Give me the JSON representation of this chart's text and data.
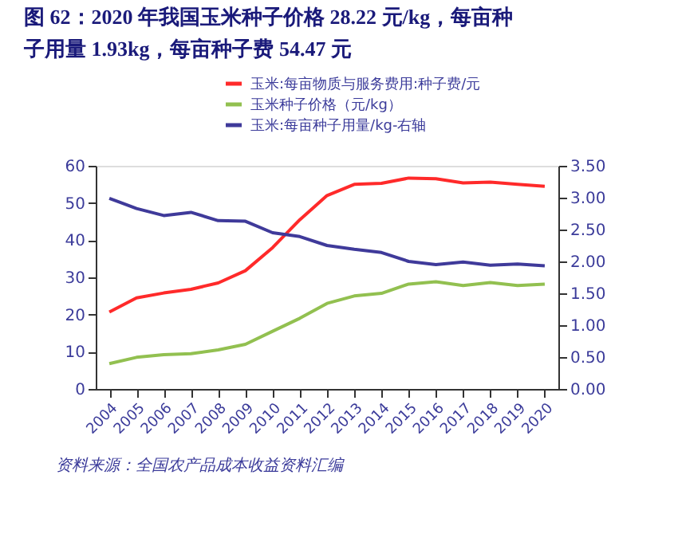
{
  "chart_data": {
    "type": "line",
    "title": "图 62：2020 年我国玉米种子价格 28.22 元/kg，每亩种子用量 1.93kg，每亩种子费 54.47 元",
    "categories": [
      "2004",
      "2005",
      "2006",
      "2007",
      "2008",
      "2009",
      "2010",
      "2011",
      "2012",
      "2013",
      "2014",
      "2015",
      "2016",
      "2017",
      "2018",
      "2019",
      "2020"
    ],
    "series": [
      {
        "name": "玉米:每亩物质与服务费用:种子费/元",
        "color": "#ff2a2a",
        "values": [
          20.7,
          24.5,
          25.8,
          26.8,
          28.5,
          31.8,
          38.0,
          45.5,
          52.0,
          55.0,
          55.3,
          56.7,
          56.5,
          55.4,
          55.6,
          55.0,
          54.5
        ]
      },
      {
        "name": "玉米种子价格（元/kg）",
        "color": "#92c050",
        "values": [
          6.8,
          8.5,
          9.2,
          9.5,
          10.5,
          12.0,
          15.5,
          19.0,
          23.0,
          25.0,
          25.7,
          28.2,
          28.8,
          27.8,
          28.6,
          27.8,
          28.2
        ]
      },
      {
        "name": "玉米:每亩种子用量/kg-右轴",
        "color": "#3f3a9a",
        "axis": "y2",
        "values": [
          2.99,
          2.83,
          2.72,
          2.77,
          2.64,
          2.63,
          2.45,
          2.39,
          2.25,
          2.19,
          2.14,
          2.0,
          1.95,
          1.99,
          1.94,
          1.96,
          1.93
        ]
      }
    ],
    "ylim": [
      0,
      60
    ],
    "yticks": [
      0,
      10,
      20,
      30,
      40,
      50,
      60
    ],
    "y2lim": [
      0,
      3.5
    ],
    "y2ticks": [
      {
        "value": 0,
        "label": "0.00"
      },
      {
        "value": 0.5,
        "label": "0.50"
      },
      {
        "value": 1,
        "label": "1.00"
      },
      {
        "value": 1.5,
        "label": "1.50"
      },
      {
        "value": 2,
        "label": "2.00"
      },
      {
        "value": 2.5,
        "label": "2.50"
      },
      {
        "value": 3,
        "label": "3.00"
      },
      {
        "value": 3.5,
        "label": "3.50"
      }
    ],
    "grid": false,
    "legend": "top",
    "marker": "none",
    "line_style": "solid",
    "annotations": [
      "资料来源：全国农产品成本收益资料汇编"
    ]
  }
}
